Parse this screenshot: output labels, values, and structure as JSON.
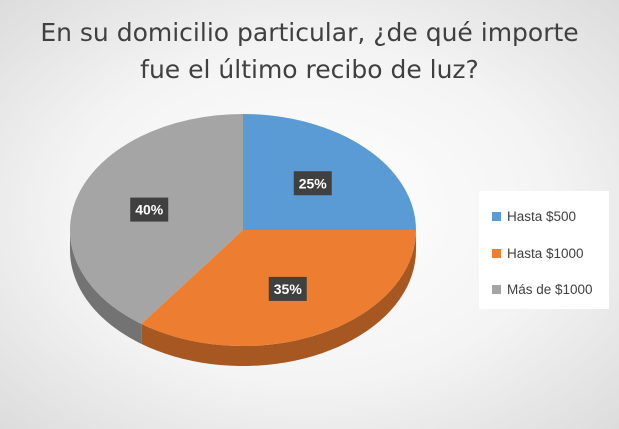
{
  "chart_data": {
    "type": "pie",
    "title": "En su domicilio particular, ¿de qué importe fue el último recibo de luz?",
    "categories": [
      "Hasta $500",
      "Hasta $1000",
      "Más de $1000"
    ],
    "values": [
      25,
      35,
      40
    ],
    "data_labels": [
      "25%",
      "35%",
      "40%"
    ],
    "colors": [
      "#5b9bd5",
      "#ed7d31",
      "#a5a5a5"
    ],
    "dark_colors": [
      "#3f6c95",
      "#a65722",
      "#737373"
    ],
    "legend_position": "right",
    "style": "3d"
  }
}
